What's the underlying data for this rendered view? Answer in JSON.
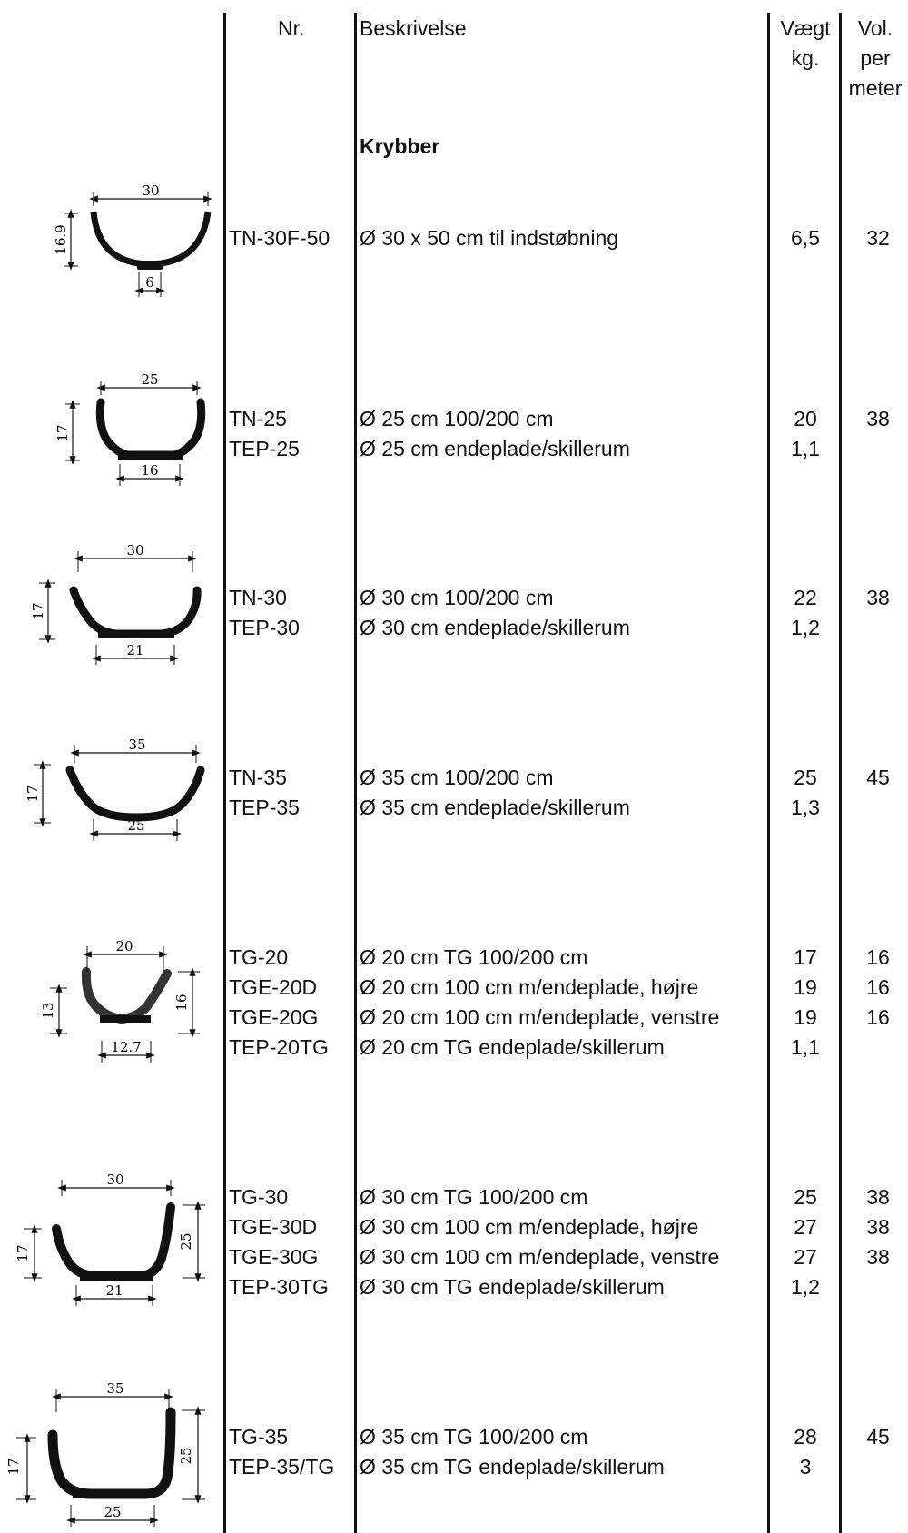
{
  "header": {
    "nr": "Nr.",
    "beskrivelse": "Beskrivelse",
    "vaegt": [
      "Vægt",
      "kg."
    ],
    "vol": [
      "Vol.",
      "per",
      "meter"
    ]
  },
  "section_title": "Krybber",
  "rows": [
    {
      "nr": [
        "TN-30F-50"
      ],
      "desc": [
        "Ø 30 x 50 cm til indstøbning"
      ],
      "vaegt": [
        "6,5"
      ],
      "vol": [
        "32"
      ],
      "dims": {
        "top": "30",
        "left": "16.9",
        "bottom": "6"
      }
    },
    {
      "nr": [
        "TN-25",
        "TEP-25"
      ],
      "desc": [
        "Ø 25 cm 100/200 cm",
        "Ø 25 cm endeplade/skillerum"
      ],
      "vaegt": [
        "20",
        "1,1"
      ],
      "vol": [
        "38"
      ],
      "dims": {
        "top": "25",
        "left": "17",
        "bottom": "16"
      }
    },
    {
      "nr": [
        "TN-30",
        "TEP-30"
      ],
      "desc": [
        "Ø 30 cm 100/200 cm",
        "Ø 30 cm endeplade/skillerum"
      ],
      "vaegt": [
        "22",
        "1,2"
      ],
      "vol": [
        "38"
      ],
      "dims": {
        "top": "30",
        "left": "17",
        "bottom": "21"
      }
    },
    {
      "nr": [
        "TN-35",
        "TEP-35"
      ],
      "desc": [
        "Ø 35 cm 100/200 cm",
        "Ø 35 cm endeplade/skillerum"
      ],
      "vaegt": [
        "25",
        "1,3"
      ],
      "vol": [
        "45"
      ],
      "dims": {
        "top": "35",
        "left": "17",
        "bottom": "25"
      }
    },
    {
      "nr": [
        "TG-20",
        "TGE-20D",
        "TGE-20G",
        "TEP-20TG"
      ],
      "desc": [
        "Ø 20 cm TG 100/200 cm",
        "Ø 20 cm 100 cm m/endeplade, højre",
        "Ø 20 cm 100 cm m/endeplade, venstre",
        "Ø 20 cm TG endeplade/skillerum"
      ],
      "vaegt": [
        "17",
        "19",
        "19",
        "1,1"
      ],
      "vol": [
        "16",
        "16",
        "16"
      ],
      "dims": {
        "top": "20",
        "left": "13",
        "right": "16",
        "bottom": "12.7"
      }
    },
    {
      "nr": [
        "TG-30",
        "TGE-30D",
        "TGE-30G",
        "TEP-30TG"
      ],
      "desc": [
        "Ø 30 cm TG 100/200 cm",
        "Ø 30 cm 100 cm m/endeplade, højre",
        "Ø 30 cm 100 cm m/endeplade, venstre",
        "Ø 30 cm TG endeplade/skillerum"
      ],
      "vaegt": [
        "25",
        "27",
        "27",
        "1,2"
      ],
      "vol": [
        "38",
        "38",
        "38"
      ],
      "dims": {
        "top": "30",
        "left": "17",
        "right": "25",
        "bottom": "21"
      }
    },
    {
      "nr": [
        "TG-35",
        "TEP-35/TG"
      ],
      "desc": [
        "Ø 35 cm TG 100/200 cm",
        "Ø 35 cm TG endeplade/skillerum"
      ],
      "vaegt": [
        "28",
        "3"
      ],
      "vol": [
        "45"
      ],
      "dims": {
        "top": "35",
        "left": "17",
        "right": "25",
        "bottom": "25"
      }
    }
  ]
}
